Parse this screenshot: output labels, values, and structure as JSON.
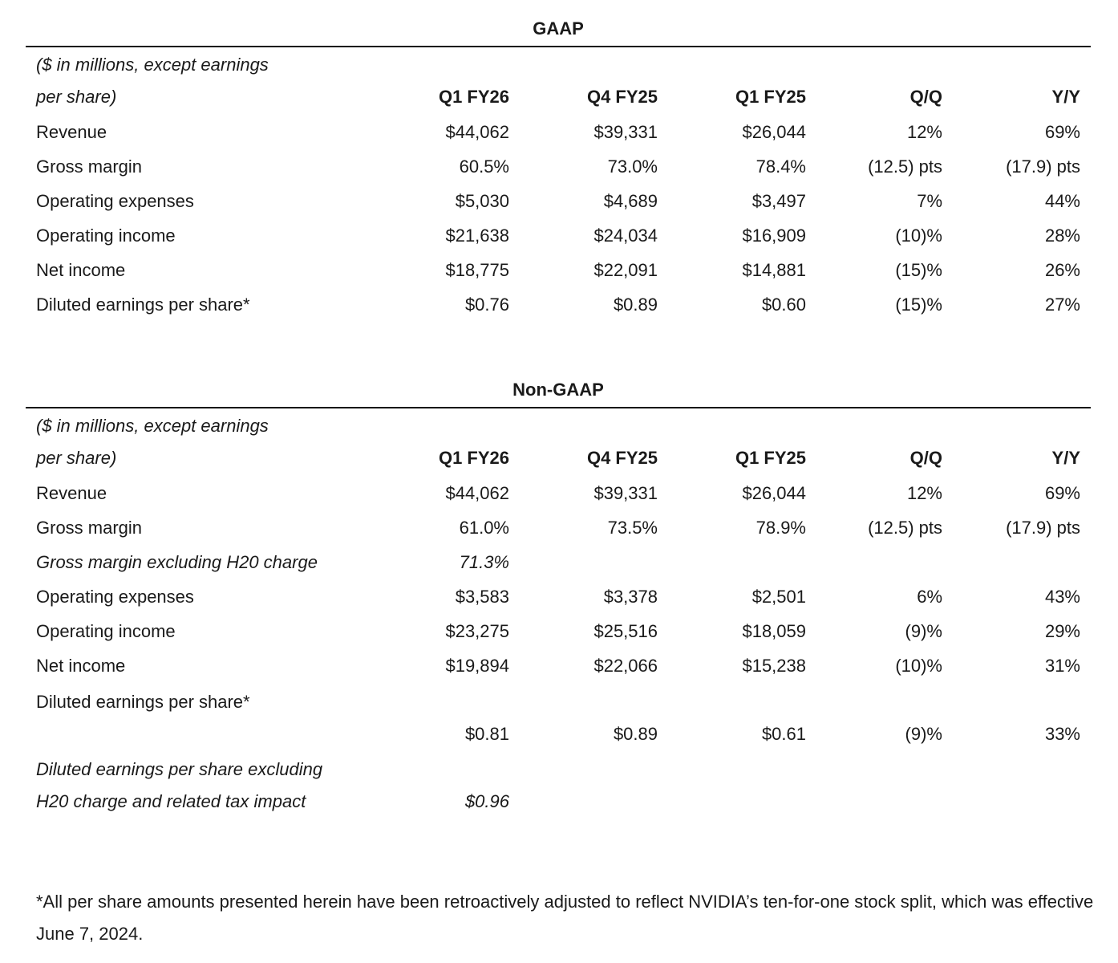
{
  "columns": [
    "Q1 FY26",
    "Q4 FY25",
    "Q1 FY25",
    "Q/Q",
    "Y/Y"
  ],
  "header_label": "($ in millions, except earnings\nper share)",
  "gaap": {
    "title": "GAAP",
    "rows": [
      {
        "label": "Revenue",
        "values": [
          "$44,062",
          "$39,331",
          "$26,044",
          "12%",
          "69%"
        ]
      },
      {
        "label": "Gross margin",
        "values": [
          "60.5%",
          "73.0%",
          "78.4%",
          "(12.5) pts",
          "(17.9) pts"
        ]
      },
      {
        "label": "Operating expenses",
        "values": [
          "$5,030",
          "$4,689",
          "$3,497",
          "7%",
          "44%"
        ]
      },
      {
        "label": "Operating income",
        "values": [
          "$21,638",
          "$24,034",
          "$16,909",
          "(10)%",
          "28%"
        ]
      },
      {
        "label": "Net income",
        "values": [
          "$18,775",
          "$22,091",
          "$14,881",
          "(15)%",
          "26%"
        ]
      },
      {
        "label": "Diluted earnings per share*",
        "values": [
          "$0.76",
          "$0.89",
          "$0.60",
          "(15)%",
          "27%"
        ]
      }
    ]
  },
  "non_gaap": {
    "title": "Non-GAAP",
    "rows": [
      {
        "label": "Revenue",
        "values": [
          "$44,062",
          "$39,331",
          "$26,044",
          "12%",
          "69%"
        ]
      },
      {
        "label": "Gross margin",
        "values": [
          "61.0%",
          "73.5%",
          "78.9%",
          "(12.5) pts",
          "(17.9) pts"
        ]
      },
      {
        "label": "Gross margin excluding H20 charge",
        "values": [
          "71.3%",
          "",
          "",
          "",
          ""
        ],
        "italic": true
      },
      {
        "label": "Operating expenses",
        "values": [
          "$3,583",
          "$3,378",
          "$2,501",
          "6%",
          "43%"
        ]
      },
      {
        "label": "Operating income",
        "values": [
          "$23,275",
          "$25,516",
          "$18,059",
          "(9)%",
          "29%"
        ]
      },
      {
        "label": "Net income",
        "values": [
          "$19,894",
          "$22,066",
          "$15,238",
          "(10)%",
          "31%"
        ]
      },
      {
        "label": "Diluted earnings per share*\n",
        "values": [
          "$0.81",
          "$0.89",
          "$0.61",
          "(9)%",
          "33%"
        ]
      },
      {
        "label": "Diluted earnings per share excluding\nH20 charge and related tax impact",
        "values": [
          "$0.96",
          "",
          "",
          "",
          ""
        ],
        "italic": true
      }
    ]
  },
  "footnote": "*All per share amounts presented herein have been retroactively adjusted to reflect NVIDIA’s ten-for-one stock split, which was effective June 7, 2024."
}
